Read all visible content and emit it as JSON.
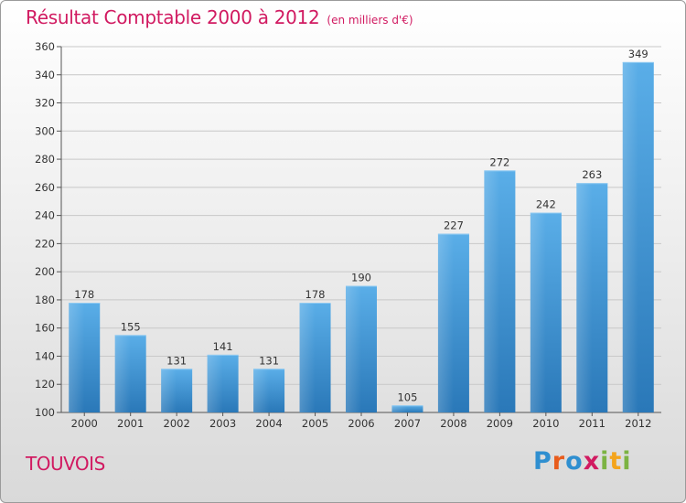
{
  "title": "Résultat Comptable 2000 à 2012",
  "subtitle": "(en milliers d'€)",
  "commune": "TOUVOIS",
  "logo": {
    "text": "Proxiti",
    "colors": [
      "#2f8fd0",
      "#e85c1c",
      "#2f8fd0",
      "#d11a61",
      "#7cb342",
      "#f4a41c",
      "#7cb342"
    ]
  },
  "colors": {
    "title": "#d11a61",
    "bar_top": "#5aaee8",
    "bar_bottom": "#2a78b8"
  },
  "chart_data": {
    "type": "bar",
    "categories": [
      "2000",
      "2001",
      "2002",
      "2003",
      "2004",
      "2005",
      "2006",
      "2007",
      "2008",
      "2009",
      "2010",
      "2011",
      "2012"
    ],
    "values": [
      178,
      155,
      131,
      141,
      131,
      178,
      190,
      105,
      227,
      272,
      242,
      263,
      349
    ],
    "ylim": [
      100,
      360
    ],
    "yticks": [
      100,
      120,
      140,
      160,
      180,
      200,
      220,
      240,
      260,
      280,
      300,
      320,
      340,
      360
    ],
    "grid": true,
    "xlabel": "",
    "ylabel": ""
  }
}
